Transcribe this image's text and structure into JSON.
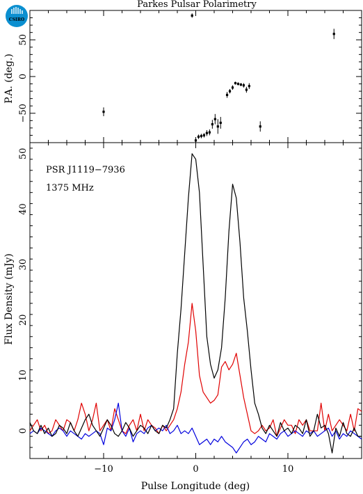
{
  "logo": {
    "text": "CSIRO"
  },
  "chart_data": [
    {
      "type": "scatter",
      "title": "Parkes Pulsar Polarimetry",
      "ylabel": "P.A. (deg.)",
      "xlim": [
        -18,
        18
      ],
      "ylim": [
        -90,
        90
      ],
      "yticks": [
        -50,
        0,
        50
      ],
      "points": [
        {
          "x": -10.0,
          "y": -48,
          "err": 6
        },
        {
          "x": -0.4,
          "y": 83,
          "err": 3
        },
        {
          "x": 0.0,
          "y": -87,
          "err": 4
        },
        {
          "x": 0.3,
          "y": -82,
          "err": 3
        },
        {
          "x": 0.6,
          "y": -81,
          "err": 3
        },
        {
          "x": 0.9,
          "y": -80,
          "err": 3
        },
        {
          "x": 1.2,
          "y": -77,
          "err": 4
        },
        {
          "x": 1.5,
          "y": -76,
          "err": 4
        },
        {
          "x": 1.8,
          "y": -65,
          "err": 6
        },
        {
          "x": 2.1,
          "y": -58,
          "err": 7
        },
        {
          "x": 2.4,
          "y": -68,
          "err": 10
        },
        {
          "x": 2.7,
          "y": -63,
          "err": 8
        },
        {
          "x": 3.4,
          "y": -25,
          "err": 4
        },
        {
          "x": 3.7,
          "y": -20,
          "err": 3
        },
        {
          "x": 4.0,
          "y": -15,
          "err": 3
        },
        {
          "x": 4.3,
          "y": -9,
          "err": 2
        },
        {
          "x": 4.6,
          "y": -10,
          "err": 2
        },
        {
          "x": 4.9,
          "y": -11,
          "err": 2
        },
        {
          "x": 5.2,
          "y": -12,
          "err": 3
        },
        {
          "x": 5.5,
          "y": -18,
          "err": 4
        },
        {
          "x": 5.8,
          "y": -13,
          "err": 4
        },
        {
          "x": 7.0,
          "y": -68,
          "err": 7
        },
        {
          "x": 15.0,
          "y": 58,
          "err": 7
        }
      ]
    },
    {
      "type": "line",
      "xlabel": "Pulse Longitude (deg)",
      "ylabel": "Flux Density (mJy)",
      "xlim": [
        -18,
        18
      ],
      "ylim": [
        -5,
        52
      ],
      "xticks": [
        -10,
        0,
        10
      ],
      "yticks": [
        0,
        10,
        20,
        30,
        40,
        50
      ],
      "annotations": [
        "PSR J1119−7936",
        "1375 MHz"
      ],
      "series": [
        {
          "color": "#000000",
          "x": [
            -18.0,
            -17.6,
            -17.2,
            -16.8,
            -16.4,
            -16.0,
            -15.6,
            -15.2,
            -14.8,
            -14.4,
            -14.0,
            -13.6,
            -13.2,
            -12.8,
            -12.4,
            -12.0,
            -11.6,
            -11.2,
            -10.8,
            -10.4,
            -10.0,
            -9.6,
            -9.2,
            -8.8,
            -8.4,
            -8.0,
            -7.6,
            -7.2,
            -6.8,
            -6.4,
            -6.0,
            -5.6,
            -5.2,
            -4.8,
            -4.4,
            -4.0,
            -3.6,
            -3.2,
            -2.8,
            -2.4,
            -2.0,
            -1.6,
            -1.2,
            -0.8,
            -0.4,
            0.0,
            0.4,
            0.8,
            1.2,
            1.6,
            2.0,
            2.4,
            2.8,
            3.2,
            3.6,
            4.0,
            4.4,
            4.8,
            5.2,
            5.6,
            6.0,
            6.4,
            6.8,
            7.2,
            7.6,
            8.0,
            8.4,
            8.8,
            9.2,
            9.6,
            10.0,
            10.4,
            10.8,
            11.2,
            11.6,
            12.0,
            12.4,
            12.8,
            13.2,
            13.6,
            14.0,
            14.4,
            14.8,
            15.2,
            15.6,
            16.0,
            16.4,
            16.8,
            17.2,
            17.6,
            18.0
          ],
          "y": [
            1.5,
            0,
            -0.5,
            1,
            -0.5,
            0.5,
            -1,
            -0.5,
            1,
            0.5,
            -0.5,
            1.5,
            0,
            -1,
            0.5,
            2,
            3,
            1,
            0,
            -1,
            0.5,
            2,
            1,
            -0.5,
            -1,
            0,
            1.5,
            0.5,
            -1,
            0,
            1,
            0.5,
            -0.5,
            1,
            0,
            -0.5,
            1,
            0.5,
            2,
            4,
            14,
            22,
            32,
            42,
            50,
            49,
            43,
            30,
            17,
            12,
            9.5,
            11,
            15,
            24,
            36,
            44.5,
            42,
            34,
            24,
            18,
            11,
            5,
            3,
            0.5,
            -0.5,
            1,
            0,
            -1,
            1.5,
            0,
            0.5,
            -0.5,
            1,
            0.5,
            -0.5,
            2,
            -1,
            0,
            3,
            0.5,
            1,
            -0.5,
            -4,
            0.5,
            -1,
            1.5,
            -0.5,
            -1,
            0.5,
            -1,
            -1
          ]
        },
        {
          "color": "#e00000",
          "x": [
            -18.0,
            -17.6,
            -17.2,
            -16.8,
            -16.4,
            -16.0,
            -15.6,
            -15.2,
            -14.8,
            -14.4,
            -14.0,
            -13.6,
            -13.2,
            -12.8,
            -12.4,
            -12.0,
            -11.6,
            -11.2,
            -10.8,
            -10.4,
            -10.0,
            -9.6,
            -9.2,
            -8.8,
            -8.4,
            -8.0,
            -7.6,
            -7.2,
            -6.8,
            -6.4,
            -6.0,
            -5.6,
            -5.2,
            -4.8,
            -4.4,
            -4.0,
            -3.6,
            -3.2,
            -2.8,
            -2.4,
            -2.0,
            -1.6,
            -1.2,
            -0.8,
            -0.4,
            0.0,
            0.4,
            0.8,
            1.2,
            1.6,
            2.0,
            2.4,
            2.8,
            3.2,
            3.6,
            4.0,
            4.4,
            4.8,
            5.2,
            5.6,
            6.0,
            6.4,
            6.8,
            7.2,
            7.6,
            8.0,
            8.4,
            8.8,
            9.2,
            9.6,
            10.0,
            10.4,
            10.8,
            11.2,
            11.6,
            12.0,
            12.4,
            12.8,
            13.2,
            13.6,
            14.0,
            14.4,
            14.8,
            15.2,
            15.6,
            16.0,
            16.4,
            16.8,
            17.2,
            17.6,
            18.0
          ],
          "y": [
            0,
            1,
            2,
            0,
            1,
            -0.5,
            0,
            2,
            1,
            0,
            2,
            1.5,
            0,
            2,
            5,
            3,
            0,
            2,
            5,
            0,
            1,
            2,
            0,
            4,
            2,
            0,
            -0.5,
            1,
            2,
            0,
            3,
            0,
            2,
            1,
            0.5,
            -0.5,
            1,
            0,
            1,
            2,
            4,
            7,
            12,
            16,
            23,
            18,
            10,
            7,
            6,
            5,
            5.5,
            6.5,
            11.5,
            12.5,
            11,
            12,
            14,
            10,
            6,
            3,
            0,
            -0.5,
            0,
            1,
            0,
            0.5,
            2,
            -1,
            0.5,
            2,
            1,
            1,
            -0.5,
            2,
            1,
            2,
            0,
            0,
            0,
            5,
            0,
            3,
            0,
            1,
            2,
            1,
            0,
            3,
            0,
            4,
            3.5
          ]
        },
        {
          "color": "#0000dd",
          "x": [
            -18.0,
            -17.6,
            -17.2,
            -16.8,
            -16.4,
            -16.0,
            -15.6,
            -15.2,
            -14.8,
            -14.4,
            -14.0,
            -13.6,
            -13.2,
            -12.8,
            -12.4,
            -12.0,
            -11.6,
            -11.2,
            -10.8,
            -10.4,
            -10.0,
            -9.6,
            -9.2,
            -8.8,
            -8.4,
            -8.0,
            -7.6,
            -7.2,
            -6.8,
            -6.4,
            -6.0,
            -5.6,
            -5.2,
            -4.8,
            -4.4,
            -4.0,
            -3.6,
            -3.2,
            -2.8,
            -2.4,
            -2.0,
            -1.6,
            -1.2,
            -0.8,
            -0.4,
            0.0,
            0.4,
            0.8,
            1.2,
            1.6,
            2.0,
            2.4,
            2.8,
            3.2,
            3.6,
            4.0,
            4.4,
            4.8,
            5.2,
            5.6,
            6.0,
            6.4,
            6.8,
            7.2,
            7.6,
            8.0,
            8.4,
            8.8,
            9.2,
            9.6,
            10.0,
            10.4,
            10.8,
            11.2,
            11.6,
            12.0,
            12.4,
            12.8,
            13.2,
            13.6,
            14.0,
            14.4,
            14.8,
            15.2,
            15.6,
            16.0,
            16.4,
            16.8,
            17.2,
            17.6,
            18.0
          ],
          "y": [
            -0.5,
            0,
            -0.5,
            0.5,
            0,
            -0.5,
            -1,
            0,
            0.5,
            0,
            -1,
            0,
            -0.5,
            -1,
            -1.5,
            -0.5,
            -1,
            -0.5,
            0,
            -0.5,
            -2.5,
            0.5,
            0,
            2,
            5,
            0,
            -1,
            0.5,
            -2,
            -0.5,
            0,
            -0.5,
            0.5,
            1,
            0,
            0.5,
            0,
            1,
            -0.5,
            0,
            1,
            -0.5,
            0,
            -0.5,
            0.5,
            -1,
            -2.5,
            -2,
            -1.5,
            -2.5,
            -1.5,
            -2,
            -1,
            -2,
            -2.5,
            -3,
            -4,
            -3,
            -2,
            -1.5,
            -2.5,
            -2,
            -1,
            -1.5,
            -2,
            -0.5,
            -1,
            -1.5,
            -0.5,
            0,
            -1,
            -0.5,
            0,
            -0.5,
            -1,
            0,
            -0.5,
            0,
            -1,
            -0.5,
            0,
            0.5,
            -1,
            0,
            -1.5,
            -0.5,
            -1,
            0,
            -0.5,
            -1,
            -1.5
          ]
        }
      ]
    }
  ]
}
